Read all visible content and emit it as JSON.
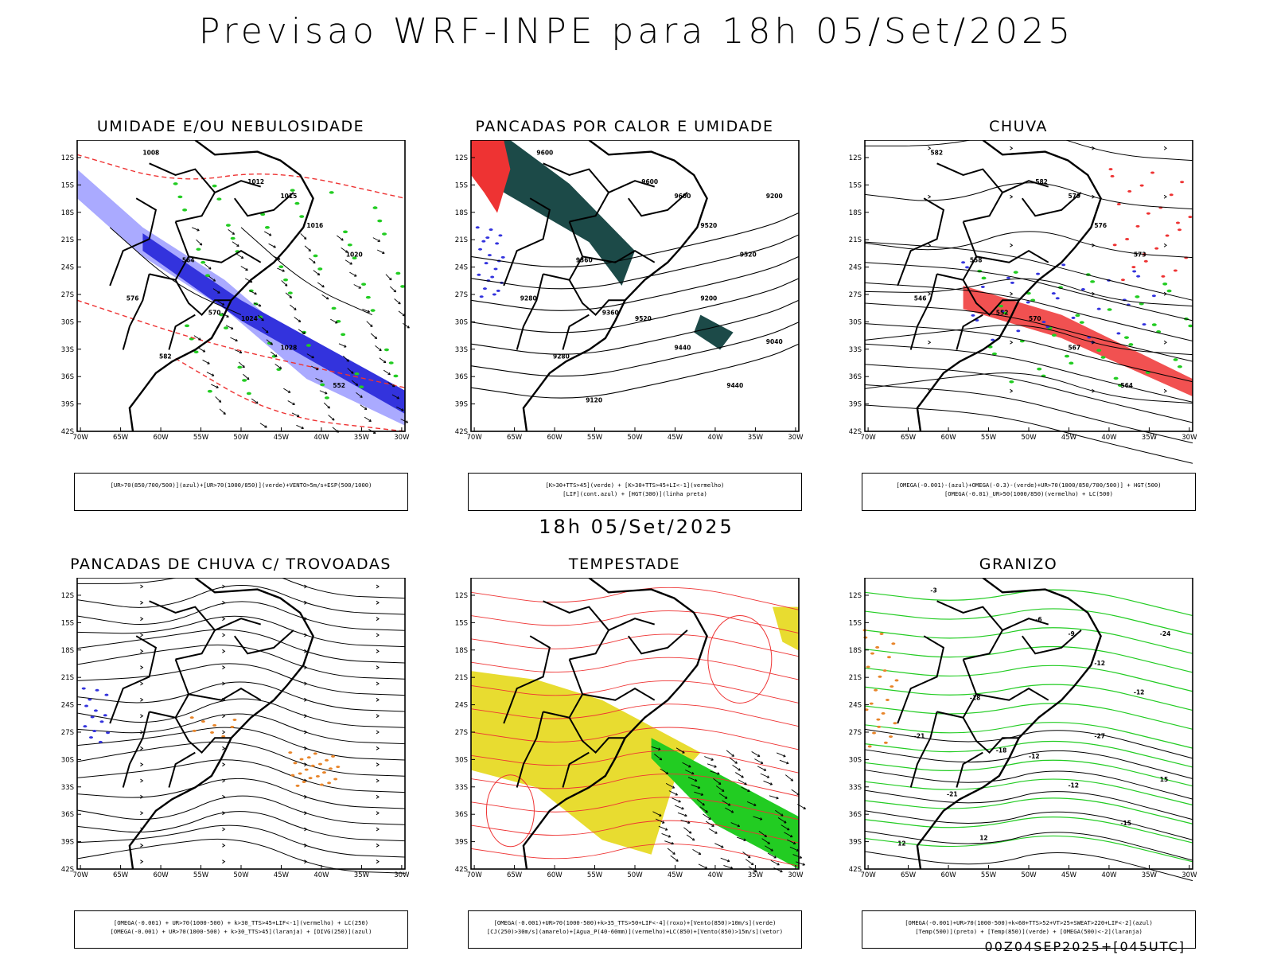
{
  "header": {
    "title": "Previsao WRF-INPE  para 18h 05/Set/2025"
  },
  "subheader": {
    "time_label": "18h 05/Set/2025"
  },
  "footer": {
    "run_label": "00Z04SEP2025+[045UTC]"
  },
  "axes": {
    "lat_labels": [
      "12S",
      "15S",
      "18S",
      "21S",
      "24S",
      "27S",
      "30S",
      "33S",
      "36S",
      "39S",
      "42S"
    ],
    "lon_labels": [
      "70W",
      "65W",
      "60W",
      "55W",
      "50W",
      "45W",
      "40W",
      "35W",
      "30W"
    ]
  },
  "panels": [
    {
      "title": "UMIDADE E/OU NEBULOSIDADE",
      "legend": [
        "[UR>70(850/700/500)](azul)+[UR>70(1000/850)](verde)+VENTO>5m/s+ESP(500/1000)"
      ],
      "contour_labels": [
        "1008",
        "1012",
        "1015",
        "1016",
        "1020",
        "1024",
        "1028",
        "552",
        "564",
        "570",
        "576",
        "582"
      ]
    },
    {
      "title": "PANCADAS POR CALOR E UMIDADE",
      "legend": [
        "[K>30+TTS>45](verde) + [K>30+TTS>45+LI<-1](vermelho)",
        "[LIF](cont.azul) + [HGT(300)](linha preta)"
      ],
      "contour_labels": [
        "9600",
        "9600",
        "9600",
        "9520",
        "9520",
        "9520",
        "9440",
        "9440",
        "9360",
        "9360",
        "9280",
        "9280",
        "9200",
        "9200",
        "9120",
        "9040"
      ]
    },
    {
      "title": "CHUVA",
      "legend": [
        "[OMEGA(-0.001)-(azul)+OMEGA(-0.3)-(verde)+UR>70(1000/850/700/500)] + HGT(500)",
        "[OMEGA(-0.01)_UR>50(1000/850)(vermelho) + LC(500)"
      ],
      "contour_labels": [
        "582",
        "582",
        "579",
        "576",
        "573",
        "570",
        "567",
        "564",
        "558",
        "552",
        "546"
      ]
    },
    {
      "title": "PANCADAS DE CHUVA C/ TROVOADAS",
      "legend": [
        "[OMEGA(-0.001) + UR>70(1000-500) + k>30_TTS>45+LIF<-1](vermelho) + LC(250)",
        "[OMEGA(-0.001) + UR>70(1000-500) + k>30_TTS>45](laranja) + [DIVG(250)](azul)"
      ],
      "contour_labels": []
    },
    {
      "title": "TEMPESTADE",
      "legend": [
        "[OMEGA(-0.001)+UR>70(1000-500)+k>35_TTS>50+LIF<-4](roxo)+[Vento(850)>10m/s](verde)",
        "[CJ(250)>30m/s](amarelo)+[Agua_P(40-60mm)](vermelho)+LC(850)+[Vento(850)>15m/s](vetor)"
      ],
      "contour_labels": []
    },
    {
      "title": "GRANIZO",
      "legend": [
        "[OMEGA(-0.001)+UR>70(1000-500)+k<60+TTS>52+VT>25+SWEAT>220+LIF<-2](azul)",
        "[Temp(500)](preto) + [Temp(850)](verde) + [OMEGA(500)<-2](laranja)"
      ],
      "contour_labels": [
        "-3",
        "-6",
        "-9",
        "-12",
        "-12",
        "-12",
        "-12",
        "-15",
        "-18",
        "-18",
        "-21",
        "-21",
        "-24",
        "-27",
        "12",
        "15",
        "12"
      ]
    }
  ],
  "colors": {
    "blue_humidity": "#3333dd",
    "light_blue": "#aaaaff",
    "green": "#22cc22",
    "red": "#ee3333",
    "dark_teal": "#1c4a48",
    "yellow": "#e8dc30",
    "orange": "#e8852a"
  }
}
